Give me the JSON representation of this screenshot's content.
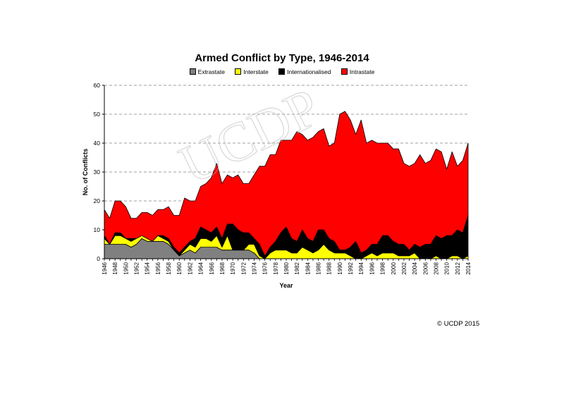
{
  "copyright": "© UCDP 2015",
  "watermark": "UCDP",
  "colors": {
    "Extrastate": "#808080",
    "Interstate": "#ffff00",
    "Internationalised": "#000000",
    "Intrastate": "#ff0000",
    "grid": "#808080",
    "axis": "#000000"
  },
  "chart_data": {
    "type": "area",
    "stacked": true,
    "title": "Armed Conflict by Type, 1946-2014",
    "xlabel": "Year",
    "ylabel": "No. of Conflicts",
    "xlim": [
      1946,
      2014
    ],
    "ylim": [
      0,
      60
    ],
    "yticks": [
      0,
      10,
      20,
      30,
      40,
      50,
      60
    ],
    "xticks": [
      1946,
      1948,
      1950,
      1952,
      1954,
      1956,
      1958,
      1960,
      1962,
      1964,
      1966,
      1968,
      1970,
      1972,
      1974,
      1976,
      1978,
      1980,
      1982,
      1984,
      1986,
      1988,
      1990,
      1992,
      1994,
      1996,
      1998,
      2000,
      2002,
      2004,
      2006,
      2008,
      2010,
      2012,
      2014
    ],
    "grid": "horizontal dashed",
    "legend": "top",
    "x": [
      1946,
      1947,
      1948,
      1949,
      1950,
      1951,
      1952,
      1953,
      1954,
      1955,
      1956,
      1957,
      1958,
      1959,
      1960,
      1961,
      1962,
      1963,
      1964,
      1965,
      1966,
      1967,
      1968,
      1969,
      1970,
      1971,
      1972,
      1973,
      1974,
      1975,
      1976,
      1977,
      1978,
      1979,
      1980,
      1981,
      1982,
      1983,
      1984,
      1985,
      1986,
      1987,
      1988,
      1989,
      1990,
      1991,
      1992,
      1993,
      1994,
      1995,
      1996,
      1997,
      1998,
      1999,
      2000,
      2001,
      2002,
      2003,
      2004,
      2005,
      2006,
      2007,
      2008,
      2009,
      2010,
      2011,
      2012,
      2013,
      2014
    ],
    "series": [
      {
        "name": "Extrastate",
        "values": [
          5,
          5,
          5,
          5,
          5,
          4,
          5,
          7,
          6,
          6,
          6,
          6,
          5,
          3,
          1,
          2,
          3,
          2,
          4,
          4,
          4,
          4,
          3,
          3,
          3,
          3,
          3,
          3,
          2,
          0,
          0,
          0,
          0,
          0,
          0,
          0,
          0,
          0,
          0,
          0,
          0,
          0,
          0,
          0,
          0,
          0,
          0,
          0,
          0,
          0,
          0,
          0,
          0,
          0,
          0,
          0,
          0,
          0,
          0,
          0,
          0,
          0,
          0,
          0,
          0,
          0,
          0,
          0,
          0
        ]
      },
      {
        "name": "Interstate",
        "values": [
          2,
          0,
          3,
          3,
          2,
          2,
          2,
          1,
          1,
          0,
          2,
          1,
          1,
          0,
          0,
          1,
          2,
          2,
          3,
          3,
          2,
          4,
          1,
          5,
          0,
          0,
          0,
          2,
          3,
          1,
          0,
          2,
          3,
          3,
          3,
          2,
          2,
          4,
          3,
          2,
          3,
          5,
          3,
          2,
          2,
          2,
          1,
          0,
          0,
          1,
          2,
          1,
          2,
          2,
          2,
          1,
          1,
          1,
          2,
          0,
          0,
          0,
          1,
          0,
          0,
          1,
          1,
          0,
          1
        ]
      },
      {
        "name": "Internationalised",
        "values": [
          1,
          0,
          1,
          1,
          0,
          1,
          0,
          0,
          0,
          0,
          0,
          1,
          1,
          1,
          1,
          1,
          1,
          3,
          4,
          3,
          3,
          3,
          3,
          4,
          9,
          7,
          6,
          4,
          2,
          4,
          1,
          2,
          3,
          6,
          8,
          5,
          4,
          6,
          4,
          4,
          7,
          5,
          4,
          4,
          1,
          1,
          3,
          6,
          2,
          2,
          3,
          4,
          6,
          6,
          4,
          4,
          4,
          2,
          3,
          4,
          5,
          5,
          7,
          7,
          8,
          7,
          9,
          9,
          14
        ]
      },
      {
        "name": "Intrastate",
        "values": [
          9,
          9,
          11,
          11,
          11,
          7,
          7,
          8,
          9,
          9,
          9,
          9,
          11,
          11,
          13,
          17,
          14,
          13,
          14,
          16,
          19,
          22,
          19,
          17,
          16,
          19,
          17,
          17,
          22,
          27,
          31,
          32,
          30,
          32,
          30,
          34,
          38,
          33,
          34,
          36,
          34,
          35,
          32,
          34,
          47,
          48,
          44,
          37,
          46,
          37,
          36,
          35,
          32,
          32,
          32,
          33,
          28,
          29,
          28,
          32,
          28,
          29,
          30,
          30,
          23,
          29,
          22,
          25,
          25
        ]
      }
    ]
  }
}
